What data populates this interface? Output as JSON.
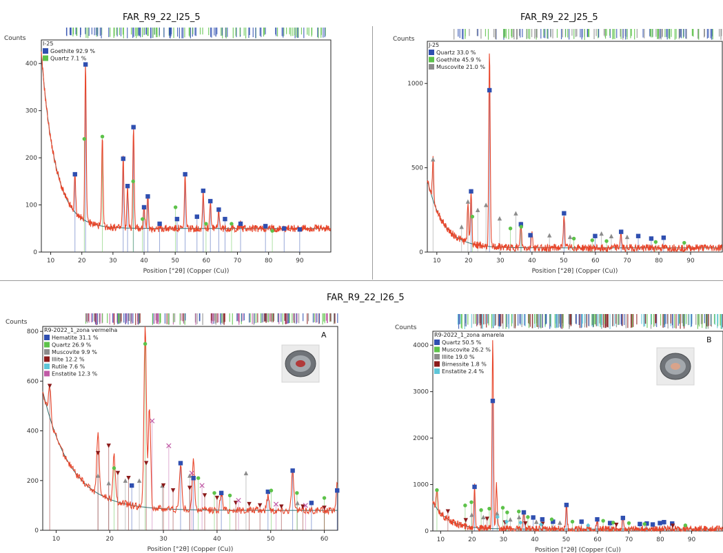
{
  "titles": {
    "top_left": "FAR_R9_22_I25_5",
    "top_right": "FAR_R9_22_J25_5",
    "bottom": "FAR_R9_22_I26_5"
  },
  "colors": {
    "trace": "#e8452a",
    "background_fit": "#2e6e6e",
    "quartz": "#5dc24a",
    "goethite": "#2f4fb0",
    "muscovite": "#8c8c8c",
    "illite": "#8c8c8c",
    "hematite": "#2f4fb0",
    "rutile": "#5ec6d8",
    "enstatite": "#c05aa6",
    "birnessite": "#8b1a1a"
  },
  "chart_data": [
    {
      "id": "i25",
      "type": "line",
      "title": "FAR_R9_22_I25_5",
      "sample_label": "I-25",
      "ylabel": "Counts",
      "xlabel": "Position [°2θ] (Copper (Cu))",
      "xlim": [
        7,
        100
      ],
      "ylim": [
        0,
        450
      ],
      "xticks": [
        10,
        20,
        30,
        40,
        50,
        60,
        70,
        80,
        90
      ],
      "yticks": [
        0,
        100,
        200,
        300,
        400
      ],
      "corner_label": "",
      "legend": [
        {
          "name": "Goethite 92.9 %",
          "color": "#2f4fb0"
        },
        {
          "name": "Quartz 7.1 %",
          "color": "#5dc24a"
        }
      ],
      "pattern": {
        "baseline_start": 420,
        "baseline_floor": 50,
        "decay": 0.22,
        "peaks": [
          [
            17.8,
            165
          ],
          [
            21.2,
            400
          ],
          [
            26.6,
            240
          ],
          [
            33.3,
            200
          ],
          [
            34.7,
            140
          ],
          [
            36.6,
            265
          ],
          [
            40.0,
            95
          ],
          [
            41.2,
            120
          ],
          [
            53.2,
            165
          ],
          [
            59.0,
            130
          ],
          [
            61.3,
            110
          ],
          [
            64.0,
            90
          ],
          [
            71.0,
            60
          ]
        ]
      },
      "markers": [
        {
          "phase": "Goethite",
          "shape": "square",
          "color": "#2f4fb0",
          "points": [
            [
              17.8,
              165
            ],
            [
              21.2,
              398
            ],
            [
              33.3,
              198
            ],
            [
              34.7,
              140
            ],
            [
              36.6,
              265
            ],
            [
              40.0,
              95
            ],
            [
              41.2,
              118
            ],
            [
              53.2,
              165
            ],
            [
              59.0,
              130
            ],
            [
              61.3,
              108
            ],
            [
              64.0,
              90
            ],
            [
              71.0,
              60
            ],
            [
              45.0,
              60
            ],
            [
              50.6,
              70
            ],
            [
              57.0,
              75
            ],
            [
              66.0,
              70
            ],
            [
              79.0,
              55
            ],
            [
              85.0,
              50
            ],
            [
              90.0,
              48
            ]
          ]
        },
        {
          "phase": "Quartz",
          "shape": "circle",
          "color": "#5dc24a",
          "points": [
            [
              20.8,
              240
            ],
            [
              26.6,
              245
            ],
            [
              36.5,
              150
            ],
            [
              39.5,
              70
            ],
            [
              50.1,
              95
            ],
            [
              59.9,
              60
            ],
            [
              68.1,
              60
            ],
            [
              81.2,
              45
            ]
          ]
        }
      ]
    },
    {
      "id": "j25",
      "type": "line",
      "title": "FAR_R9_22_J25_5",
      "sample_label": "J-25",
      "ylabel": "Counts",
      "xlabel": "Position [°2θ] (Copper (Cu))",
      "xlim": [
        7,
        100
      ],
      "ylim": [
        0,
        1250
      ],
      "xticks": [
        10,
        20,
        30,
        40,
        50,
        60,
        70,
        80,
        90
      ],
      "yticks": [
        0,
        500,
        1000
      ],
      "corner_label": "",
      "legend": [
        {
          "name": "Quartz 33.0 %",
          "color": "#2f4fb0"
        },
        {
          "name": "Goethite 45.9 %",
          "color": "#5dc24a"
        },
        {
          "name": "Muscovite 21.0 %",
          "color": "#8c8c8c"
        }
      ],
      "pattern": {
        "baseline_start": 430,
        "baseline_floor": 25,
        "decay": 0.2,
        "peaks": [
          [
            8.8,
            550
          ],
          [
            19.8,
            300
          ],
          [
            20.8,
            360
          ],
          [
            26.6,
            1200
          ],
          [
            36.5,
            170
          ],
          [
            40.0,
            120
          ],
          [
            50.1,
            230
          ],
          [
            68.0,
            110
          ]
        ]
      },
      "markers": [
        {
          "phase": "Quartz",
          "shape": "square",
          "color": "#2f4fb0",
          "points": [
            [
              20.8,
              360
            ],
            [
              26.6,
              960
            ],
            [
              36.5,
              165
            ],
            [
              39.5,
              100
            ],
            [
              50.1,
              230
            ],
            [
              59.9,
              95
            ],
            [
              68.1,
              120
            ],
            [
              73.5,
              95
            ],
            [
              77.6,
              80
            ],
            [
              81.5,
              85
            ]
          ]
        },
        {
          "phase": "Goethite",
          "shape": "circle",
          "color": "#5dc24a",
          "points": [
            [
              21.2,
              210
            ],
            [
              33.2,
              140
            ],
            [
              36.6,
              150
            ],
            [
              53.2,
              80
            ],
            [
              59.0,
              70
            ],
            [
              63.5,
              65
            ],
            [
              79.0,
              60
            ],
            [
              88.0,
              55
            ]
          ]
        },
        {
          "phase": "Muscovite",
          "shape": "triangle",
          "color": "#8c8c8c",
          "points": [
            [
              8.8,
              550
            ],
            [
              17.8,
              150
            ],
            [
              19.8,
              300
            ],
            [
              22.9,
              250
            ],
            [
              25.5,
              280
            ],
            [
              29.8,
              200
            ],
            [
              34.9,
              230
            ],
            [
              45.5,
              100
            ],
            [
              52.0,
              90
            ],
            [
              61.9,
              110
            ],
            [
              65.0,
              95
            ],
            [
              70.0,
              90
            ]
          ]
        }
      ]
    },
    {
      "id": "i26_a",
      "type": "line",
      "title": "",
      "sample_label": "R9-2022_1_zona vermelha",
      "ylabel": "Counts",
      "xlabel": "Position [°2θ] (Copper (Cu))",
      "xlim": [
        7.5,
        62.5
      ],
      "ylim": [
        0,
        820
      ],
      "xticks": [
        10,
        20,
        30,
        40,
        50,
        60
      ],
      "yticks": [
        0,
        200,
        400,
        600,
        800
      ],
      "corner_label": "A",
      "legend": [
        {
          "name": "Hematite 31.1 %",
          "color": "#2f4fb0"
        },
        {
          "name": "Quartz 26.9 %",
          "color": "#5dc24a"
        },
        {
          "name": "Muscovite 9.9 %",
          "color": "#8c8c8c"
        },
        {
          "name": "Illite 12.2 %",
          "color": "#8b1a1a"
        },
        {
          "name": "Rutile 7.6 %",
          "color": "#5ec6d8"
        },
        {
          "name": "Enstatite 12.3 %",
          "color": "#c05aa6"
        }
      ],
      "pattern": {
        "baseline_start": 560,
        "baseline_floor": 80,
        "decay": 0.19,
        "peaks": [
          [
            8.8,
            580
          ],
          [
            17.8,
            400
          ],
          [
            20.8,
            300
          ],
          [
            26.6,
            820
          ],
          [
            27.4,
            500
          ],
          [
            33.2,
            270
          ],
          [
            35.6,
            280
          ],
          [
            40.8,
            150
          ],
          [
            49.5,
            140
          ],
          [
            54.1,
            240
          ],
          [
            62.4,
            180
          ]
        ]
      },
      "markers": [
        {
          "phase": "Hematite",
          "shape": "square",
          "color": "#2f4fb0",
          "points": [
            [
              24.1,
              180
            ],
            [
              33.2,
              270
            ],
            [
              35.6,
              210
            ],
            [
              40.8,
              150
            ],
            [
              49.5,
              155
            ],
            [
              54.1,
              240
            ],
            [
              57.6,
              110
            ],
            [
              62.4,
              160
            ]
          ]
        },
        {
          "phase": "Quartz",
          "shape": "circle",
          "color": "#5dc24a",
          "points": [
            [
              20.8,
              250
            ],
            [
              26.6,
              750
            ],
            [
              36.5,
              210
            ],
            [
              39.5,
              150
            ],
            [
              42.4,
              140
            ],
            [
              50.1,
              160
            ],
            [
              54.9,
              150
            ],
            [
              60.0,
              130
            ]
          ]
        },
        {
          "phase": "Muscovite",
          "shape": "triangle",
          "color": "#8c8c8c",
          "points": [
            [
              17.8,
              220
            ],
            [
              19.8,
              190
            ],
            [
              22.9,
              200
            ],
            [
              25.5,
              200
            ],
            [
              29.8,
              180
            ],
            [
              34.9,
              220
            ],
            [
              45.4,
              230
            ],
            [
              55.0,
              110
            ]
          ]
        },
        {
          "phase": "Illite",
          "shape": "triangle-down",
          "color": "#8b1a1a",
          "points": [
            [
              8.8,
              580
            ],
            [
              17.8,
              310
            ],
            [
              19.8,
              340
            ],
            [
              21.5,
              230
            ],
            [
              23.5,
              210
            ],
            [
              26.8,
              270
            ],
            [
              30.0,
              180
            ],
            [
              31.8,
              160
            ],
            [
              34.9,
              170
            ],
            [
              37.7,
              140
            ],
            [
              40.0,
              130
            ],
            [
              43.5,
              110
            ],
            [
              46.0,
              105
            ],
            [
              48.0,
              100
            ],
            [
              52.0,
              95
            ],
            [
              56.0,
              95
            ],
            [
              60.0,
              90
            ]
          ]
        },
        {
          "phase": "Enstatite",
          "shape": "cross",
          "color": "#c05aa6",
          "points": [
            [
              27.9,
              440
            ],
            [
              31.0,
              340
            ],
            [
              35.3,
              230
            ],
            [
              37.2,
              180
            ],
            [
              44.0,
              120
            ],
            [
              51.0,
              105
            ],
            [
              56.5,
              100
            ]
          ]
        }
      ]
    },
    {
      "id": "i26_b",
      "type": "line",
      "title": "",
      "sample_label": "R9-2022_1_zona amarela",
      "ylabel": "Counts",
      "xlabel": "Position [°2θ] (Copper (Cu))",
      "xlim": [
        7.5,
        100
      ],
      "ylim": [
        0,
        4300
      ],
      "xticks": [
        10,
        20,
        30,
        40,
        50,
        60,
        70,
        80,
        90
      ],
      "yticks": [
        0,
        1000,
        2000,
        3000,
        4000
      ],
      "corner_label": "B",
      "legend": [
        {
          "name": "Quartz 50.5 %",
          "color": "#2f4fb0"
        },
        {
          "name": "Muscovite 26.2 %",
          "color": "#5dc24a"
        },
        {
          "name": "Illite 19.0 %",
          "color": "#8c8c8c"
        },
        {
          "name": "Birnessite 1.8 %",
          "color": "#8b1a1a"
        },
        {
          "name": "Enstatite 2.4 %",
          "color": "#5ec6d8"
        }
      ],
      "pattern": {
        "baseline_start": 620,
        "baseline_floor": 40,
        "decay": 0.21,
        "peaks": [
          [
            8.8,
            900
          ],
          [
            20.8,
            950
          ],
          [
            26.6,
            4100
          ],
          [
            27.8,
            1000
          ],
          [
            36.5,
            400
          ],
          [
            50.1,
            560
          ],
          [
            59.9,
            250
          ],
          [
            68.1,
            280
          ]
        ]
      },
      "markers": [
        {
          "phase": "Quartz",
          "shape": "square",
          "color": "#2f4fb0",
          "points": [
            [
              20.8,
              950
            ],
            [
              26.6,
              2800
            ],
            [
              36.5,
              400
            ],
            [
              39.5,
              290
            ],
            [
              42.4,
              250
            ],
            [
              45.8,
              200
            ],
            [
              50.1,
              560
            ],
            [
              54.9,
              200
            ],
            [
              59.9,
              250
            ],
            [
              64.0,
              170
            ],
            [
              68.1,
              280
            ],
            [
              73.5,
              150
            ],
            [
              75.7,
              160
            ],
            [
              77.6,
              140
            ],
            [
              79.9,
              170
            ],
            [
              81.2,
              190
            ],
            [
              83.8,
              160
            ]
          ]
        },
        {
          "phase": "Muscovite",
          "shape": "circle",
          "color": "#5dc24a",
          "points": [
            [
              8.8,
              880
            ],
            [
              17.8,
              550
            ],
            [
              19.8,
              620
            ],
            [
              22.9,
              450
            ],
            [
              25.5,
              480
            ],
            [
              29.8,
              500
            ],
            [
              31.2,
              400
            ],
            [
              34.9,
              420
            ],
            [
              37.8,
              300
            ],
            [
              45.4,
              250
            ],
            [
              52.0,
              200
            ],
            [
              61.8,
              220
            ],
            [
              65.0,
              180
            ],
            [
              70.0,
              170
            ],
            [
              75.0,
              150
            ],
            [
              88.0,
              120
            ]
          ]
        },
        {
          "phase": "Illite",
          "shape": "triangle",
          "color": "#8c8c8c",
          "points": [
            [
              19.9,
              350
            ],
            [
              23.6,
              300
            ],
            [
              28.0,
              380
            ],
            [
              32.2,
              250
            ],
            [
              35.0,
              300
            ],
            [
              40.5,
              200
            ],
            [
              48.0,
              180
            ]
          ]
        },
        {
          "phase": "Birnessite",
          "shape": "triangle-down",
          "color": "#8b1a1a",
          "points": [
            [
              12.3,
              420
            ],
            [
              18.0,
              230
            ],
            [
              24.8,
              260
            ],
            [
              30.5,
              180
            ],
            [
              37.0,
              160
            ],
            [
              42.5,
              150
            ],
            [
              66.0,
              130
            ],
            [
              84.0,
              110
            ]
          ]
        },
        {
          "phase": "Enstatite",
          "shape": "diamond",
          "color": "#5ec6d8",
          "points": [
            [
              28.1,
              300
            ],
            [
              31.0,
              200
            ],
            [
              35.5,
              180
            ],
            [
              42.0,
              140
            ],
            [
              57.0,
              120
            ]
          ]
        }
      ]
    }
  ]
}
